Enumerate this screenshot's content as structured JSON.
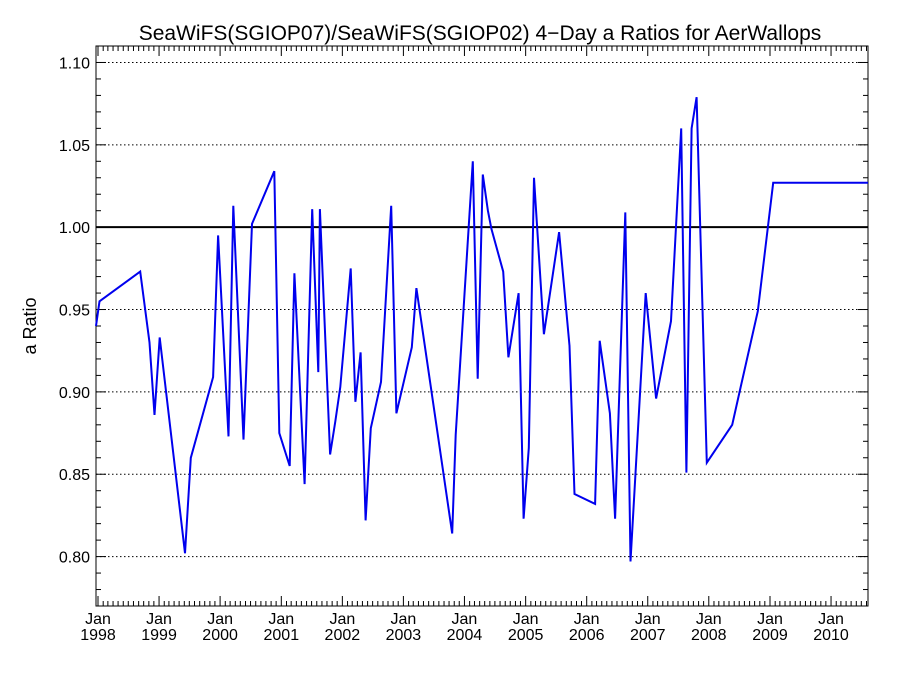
{
  "chart_data": {
    "type": "line",
    "title": "SeaWiFS(SGIOP07)/SeaWiFS(SGIOP02) 4−Day a Ratios for AerWallops",
    "xlabel": "",
    "ylabel": "a Ratio",
    "xlim": [
      "1997-12-20",
      "2010-08-10"
    ],
    "ylim": [
      0.77,
      1.11
    ],
    "grid": "horizontal dotted",
    "legend": "none",
    "reference_line": {
      "y": 1.0,
      "color": "#000000"
    },
    "series_color": "#0000ee",
    "y_ticks": [
      {
        "value": 0.8,
        "label": "0.80"
      },
      {
        "value": 0.85,
        "label": "0.85"
      },
      {
        "value": 0.9,
        "label": "0.90"
      },
      {
        "value": 0.95,
        "label": "0.95"
      },
      {
        "value": 1.0,
        "label": "1.00"
      },
      {
        "value": 1.05,
        "label": "1.05"
      },
      {
        "value": 1.1,
        "label": "1.10"
      }
    ],
    "x_ticks": [
      {
        "value": "1998-01-01",
        "month": "Jan",
        "year": "1998"
      },
      {
        "value": "1999-01-01",
        "month": "Jan",
        "year": "1999"
      },
      {
        "value": "2000-01-01",
        "month": "Jan",
        "year": "2000"
      },
      {
        "value": "2001-01-01",
        "month": "Jan",
        "year": "2001"
      },
      {
        "value": "2002-01-01",
        "month": "Jan",
        "year": "2002"
      },
      {
        "value": "2003-01-01",
        "month": "Jan",
        "year": "2003"
      },
      {
        "value": "2004-01-01",
        "month": "Jan",
        "year": "2004"
      },
      {
        "value": "2005-01-01",
        "month": "Jan",
        "year": "2005"
      },
      {
        "value": "2006-01-01",
        "month": "Jan",
        "year": "2006"
      },
      {
        "value": "2007-01-01",
        "month": "Jan",
        "year": "2007"
      },
      {
        "value": "2008-01-01",
        "month": "Jan",
        "year": "2008"
      },
      {
        "value": "2009-01-01",
        "month": "Jan",
        "year": "2009"
      },
      {
        "value": "2010-01-01",
        "month": "Jan",
        "year": "2010"
      }
    ],
    "series": [
      {
        "x": [
          "1997-12-20",
          "1998-01-10",
          "1998-09-10",
          "1998-11-05",
          "1998-12-05",
          "1999-01-05",
          "1999-06-05",
          "1999-07-10",
          "1999-11-20",
          "1999-12-20",
          "2000-02-20",
          "2000-03-20",
          "2000-05-20",
          "2000-07-10",
          "2000-11-20",
          "2000-12-20",
          "2001-02-20",
          "2001-03-20",
          "2001-05-20",
          "2001-07-05",
          "2001-08-10",
          "2001-08-20",
          "2001-10-20",
          "2001-11-20",
          "2001-12-20",
          "2002-02-20",
          "2002-03-20",
          "2002-04-20",
          "2002-05-20",
          "2002-06-20",
          "2002-08-20",
          "2002-10-20",
          "2002-11-20",
          "2003-02-20",
          "2003-03-20",
          "2003-10-20",
          "2003-11-10",
          "2004-02-20",
          "2004-03-20",
          "2004-04-20",
          "2004-05-20",
          "2004-06-10",
          "2004-08-20",
          "2004-09-20",
          "2004-11-20",
          "2004-12-20",
          "2005-01-20",
          "2005-02-20",
          "2005-04-20",
          "2005-07-20",
          "2005-09-20",
          "2005-10-20",
          "2006-02-20",
          "2006-03-20",
          "2006-05-20",
          "2006-06-20",
          "2006-08-20",
          "2006-09-20",
          "2006-12-20",
          "2007-02-20",
          "2007-05-20",
          "2007-07-20",
          "2007-08-20",
          "2007-09-20",
          "2007-10-20",
          "2007-12-20",
          "2008-05-20",
          "2008-07-10",
          "2008-10-20",
          "2009-01-20",
          "2009-03-20",
          "2009-09-20",
          "2010-02-20",
          "2010-03-20",
          "2010-05-20",
          "2010-06-20",
          "2010-08-10"
        ],
        "y": [
          0.94,
          0.955,
          0.973,
          0.93,
          0.886,
          0.933,
          0.802,
          0.86,
          0.909,
          0.995,
          0.873,
          1.013,
          0.871,
          1.002,
          1.034,
          0.875,
          0.855,
          0.972,
          0.844,
          1.011,
          0.912,
          1.011,
          0.862,
          0.882,
          0.903,
          0.975,
          0.894,
          0.924,
          0.822,
          0.878,
          0.906,
          1.013,
          0.887,
          0.927,
          0.963,
          0.814,
          0.874,
          1.04,
          0.908,
          1.032,
          1.01,
          0.999,
          0.973,
          0.921,
          0.96,
          0.823,
          0.866,
          1.03,
          0.935,
          0.997,
          0.928,
          0.838,
          0.832,
          0.931,
          0.887,
          0.823,
          1.009,
          0.797,
          0.96,
          0.896,
          0.943,
          1.06,
          0.851,
          1.06,
          1.079,
          0.857,
          0.88,
          0.903,
          0.949,
          1.027,
          1.027,
          1.027,
          1.027,
          1.027,
          1.027,
          1.027,
          1.027
        ]
      }
    ]
  }
}
